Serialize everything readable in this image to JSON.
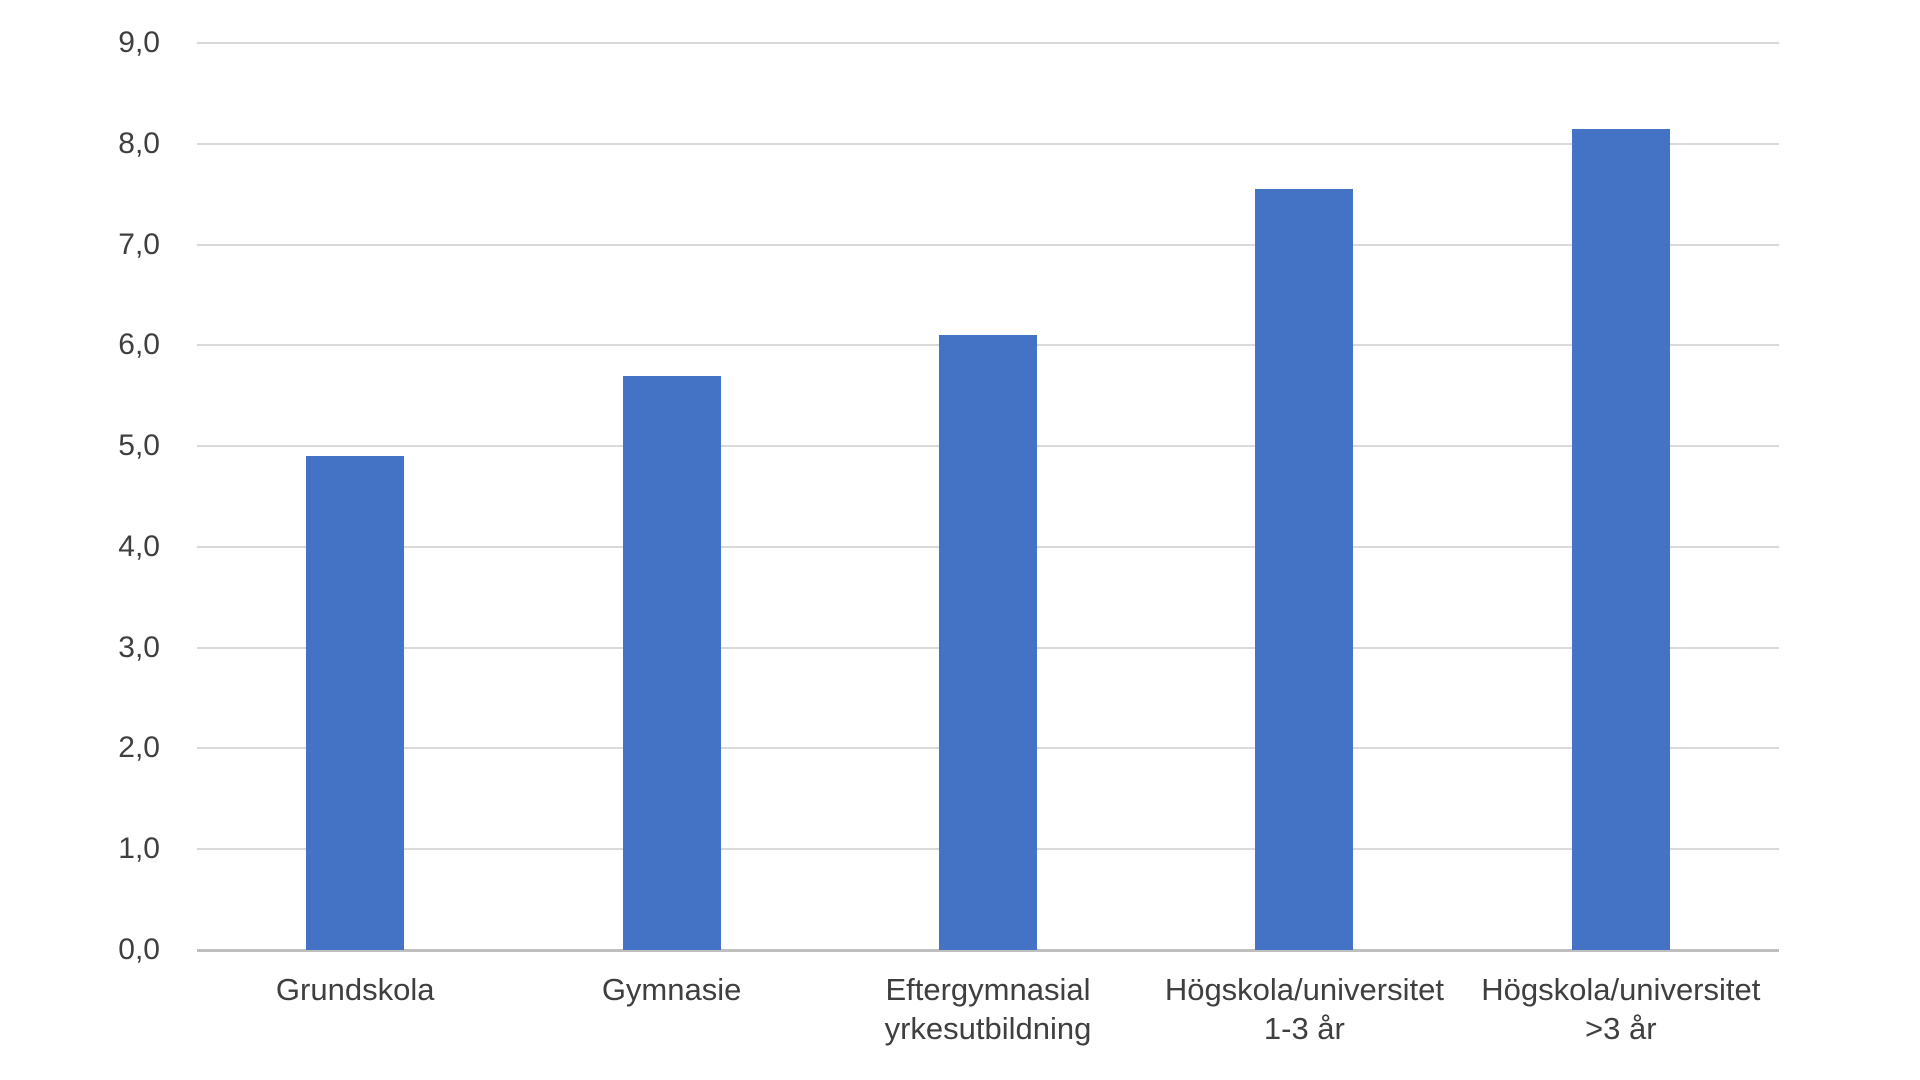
{
  "chart_data": {
    "type": "bar",
    "categories": [
      "Grundskola",
      "Gymnasie",
      "Eftergymnasial\nyrkesutbildning",
      "Högskola/universitet\n1-3 år",
      "Högskola/universitet\n>3 år"
    ],
    "values": [
      4.9,
      5.7,
      6.1,
      7.55,
      8.15
    ],
    "title": "",
    "xlabel": "",
    "ylabel": "",
    "ylim": [
      0,
      9
    ],
    "ytick_interval": 1,
    "ytick_labels": [
      "0,0",
      "1,0",
      "2,0",
      "3,0",
      "4,0",
      "5,0",
      "6,0",
      "7,0",
      "8,0",
      "9,0"
    ],
    "decimal_separator": ",",
    "grid": true,
    "legend": false,
    "colors": {
      "bar": "#4472C4",
      "gridline": "#D9D9D9",
      "axis_line": "#BFBFBF",
      "tick_text": "#3F3F3F",
      "background": "#FFFFFF"
    }
  }
}
